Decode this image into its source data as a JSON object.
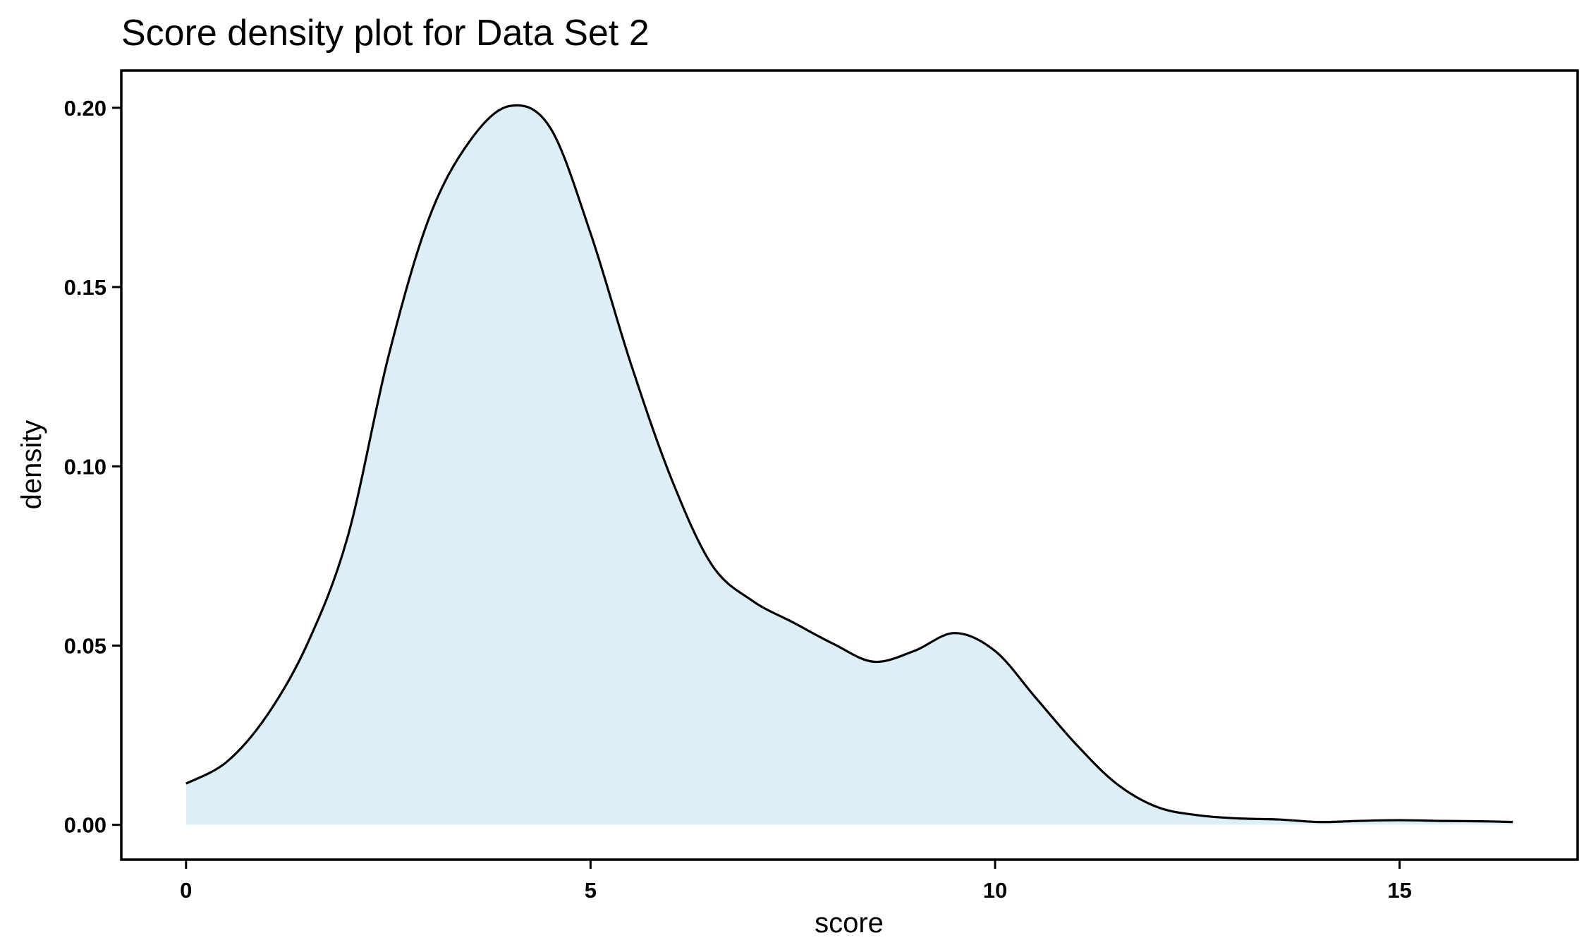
{
  "chart_data": {
    "type": "area",
    "title": "Score density plot for Data Set 2",
    "xlabel": "score",
    "ylabel": "density",
    "xlim": [
      -0.8,
      17.2
    ],
    "ylim": [
      -0.0097,
      0.2104
    ],
    "x_ticks": [
      0,
      5,
      10,
      15
    ],
    "x_tick_labels": [
      "0",
      "5",
      "10",
      "15"
    ],
    "y_ticks": [
      0,
      0.05,
      0.1,
      0.15,
      0.2
    ],
    "y_tick_labels": [
      "0.00",
      "0.05",
      "0.10",
      "0.15",
      "0.20"
    ],
    "grid": false,
    "legend": "none",
    "series": [
      {
        "x": [
          0,
          0.5,
          1.0,
          1.5,
          2.0,
          2.5,
          3.0,
          3.5,
          4.0,
          4.5,
          5.0,
          5.5,
          6.0,
          6.5,
          7.0,
          7.5,
          8.0,
          8.5,
          9.0,
          9.5,
          10.0,
          10.5,
          11.0,
          11.5,
          12.0,
          12.5,
          13.0,
          13.5,
          14.0,
          14.5,
          15.0,
          15.5,
          16.0,
          16.4
        ],
        "y": [
          0.0115,
          0.0175,
          0.0305,
          0.0505,
          0.0805,
          0.1305,
          0.169,
          0.1905,
          0.2005,
          0.1945,
          0.165,
          0.1285,
          0.0965,
          0.0725,
          0.0625,
          0.0565,
          0.0505,
          0.0455,
          0.0485,
          0.0535,
          0.0485,
          0.0355,
          0.0225,
          0.0115,
          0.005,
          0.0027,
          0.0018,
          0.0015,
          0.0008,
          0.0011,
          0.0013,
          0.0011,
          0.001,
          0.0008
        ]
      }
    ],
    "fill_color": "#ddeff6",
    "line_color": "#000000"
  }
}
